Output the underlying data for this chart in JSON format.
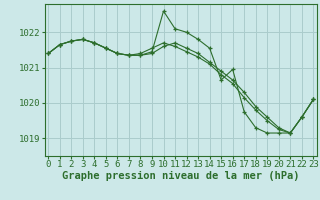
{
  "background_color": "#cce8e8",
  "grid_color": "#aacccc",
  "line_color": "#2d6e2d",
  "marker_color": "#2d6e2d",
  "xlabel": "Graphe pression niveau de la mer (hPa)",
  "xlabel_fontsize": 7.5,
  "tick_fontsize": 6.5,
  "ylim": [
    1018.5,
    1022.8
  ],
  "yticks": [
    1019,
    1020,
    1021,
    1022
  ],
  "xlim": [
    -0.3,
    23.3
  ],
  "xticks": [
    0,
    1,
    2,
    3,
    4,
    5,
    6,
    7,
    8,
    9,
    10,
    11,
    12,
    13,
    14,
    15,
    16,
    17,
    18,
    19,
    20,
    21,
    22,
    23
  ],
  "series": [
    [
      1021.4,
      1021.65,
      1021.75,
      1021.8,
      1021.7,
      1021.55,
      1021.4,
      1021.35,
      1021.35,
      1021.45,
      1022.6,
      1022.1,
      1022.0,
      1021.8,
      1021.55,
      1020.65,
      1020.95,
      1019.75,
      1019.3,
      1019.15,
      1019.15,
      1019.15,
      1019.6,
      1020.1
    ],
    [
      1021.4,
      1021.65,
      1021.75,
      1021.8,
      1021.7,
      1021.55,
      1021.4,
      1021.35,
      1021.35,
      1021.4,
      1021.6,
      1021.7,
      1021.55,
      1021.4,
      1021.15,
      1020.9,
      1020.65,
      1020.3,
      1019.9,
      1019.6,
      1019.3,
      1019.15,
      1019.6,
      1020.1
    ],
    [
      1021.4,
      1021.65,
      1021.75,
      1021.8,
      1021.7,
      1021.55,
      1021.4,
      1021.35,
      1021.4,
      1021.55,
      1021.7,
      1021.6,
      1021.45,
      1021.3,
      1021.1,
      1020.8,
      1020.55,
      1020.15,
      1019.8,
      1019.5,
      1019.25,
      1019.15,
      1019.6,
      1020.1
    ]
  ]
}
